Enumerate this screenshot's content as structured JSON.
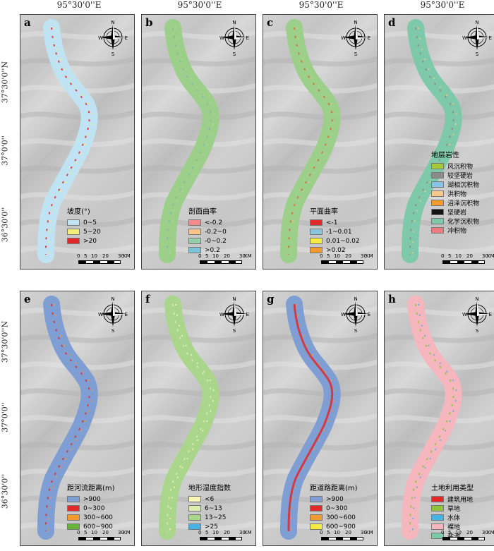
{
  "longitude_label": "95°30'0''E",
  "latitude_labels": [
    "37°30'0''N",
    "37°0'0''",
    "36°30'0''"
  ],
  "panels": [
    {
      "id": "a",
      "legend_title": "坡度(°)",
      "items": [
        {
          "label": "0~5",
          "color": "#bfe3f2"
        },
        {
          "label": "5~20",
          "color": "#f4ec77"
        },
        {
          "label": ">20",
          "color": "#e3282a"
        }
      ],
      "base": "#bfe3f2",
      "accent": "#e3282a",
      "accent2": "#f4ec77"
    },
    {
      "id": "b",
      "legend_title": "剖面曲率",
      "items": [
        {
          "label": "<-0.2",
          "color": "#f28b8b"
        },
        {
          "label": "-0.2~0",
          "color": "#f9c48a"
        },
        {
          "label": "-0~0.2",
          "color": "#94cfa8"
        },
        {
          "label": ">0.2",
          "color": "#7cc3d8"
        }
      ],
      "base": "#9ccf8a",
      "accent": "#7fb8a8",
      "accent2": "#b7d68f"
    },
    {
      "id": "c",
      "legend_title": "平面曲率",
      "items": [
        {
          "label": "<-1",
          "color": "#e3282a"
        },
        {
          "label": "-1~0.01",
          "color": "#88c6dc"
        },
        {
          "label": "0.01~0.02",
          "color": "#f4ec44"
        },
        {
          "label": ">0.02",
          "color": "#f29a2e"
        }
      ],
      "base": "#9ccf8a",
      "accent": "#d96a33",
      "accent2": "#b5d890"
    },
    {
      "id": "d",
      "legend_title": "地层岩性",
      "items": [
        {
          "label": "风沉积物",
          "color": "#a6c93a"
        },
        {
          "label": "较坚硬岩",
          "color": "#8c8a8a"
        },
        {
          "label": "湖相沉积物",
          "color": "#87c4e4"
        },
        {
          "label": "洪积物",
          "color": "#f6c98a"
        },
        {
          "label": "沼泽沉积物",
          "color": "#f29a2e"
        },
        {
          "label": "坚硬岩",
          "color": "#141414"
        },
        {
          "label": "化学沉积物",
          "color": "#7ec9a9"
        },
        {
          "label": "冲积物",
          "color": "#f07a82"
        }
      ],
      "base": "#7ec9a9",
      "accent": "#8c8a8a",
      "accent2": "#f6c98a"
    },
    {
      "id": "e",
      "legend_title": "距河流距离(m)",
      "items": [
        {
          "label": ">900",
          "color": "#7f9fd4"
        },
        {
          "label": "0~300",
          "color": "#e3282a"
        },
        {
          "label": "300~600",
          "color": "#f29a2e"
        },
        {
          "label": "600~900",
          "color": "#69b33b"
        }
      ],
      "base": "#7f9fd4",
      "accent": "#e3282a",
      "accent2": "#f29a2e"
    },
    {
      "id": "f",
      "legend_title": "地形湿度指数",
      "items": [
        {
          "label": "<6",
          "color": "#fbf5b8"
        },
        {
          "label": "6~13",
          "color": "#dcedb0"
        },
        {
          "label": "13~25",
          "color": "#a9d68a"
        },
        {
          "label": ">25",
          "color": "#46b3e6"
        }
      ],
      "base": "#a9d68a",
      "accent": "#dcedb0",
      "accent2": "#fbf5b8"
    },
    {
      "id": "g",
      "legend_title": "距道路距离(m)",
      "items": [
        {
          "label": ">900",
          "color": "#7f9fd4"
        },
        {
          "label": "0~300",
          "color": "#e3282a"
        },
        {
          "label": "300~600",
          "color": "#f29a2e"
        },
        {
          "label": "600~900",
          "color": "#f4ec44"
        }
      ],
      "base": "#7f9fd4",
      "accent": "#e3282a",
      "accent2": "#f29a2e"
    },
    {
      "id": "h",
      "legend_title": "土地利用类型",
      "items": [
        {
          "label": "建筑用地",
          "color": "#e3282a"
        },
        {
          "label": "草地",
          "color": "#8fc43a"
        },
        {
          "label": "水体",
          "color": "#46b3e6"
        },
        {
          "label": "裸地",
          "color": "#f5b6bd"
        },
        {
          "label": "盐池",
          "color": "#7ec9a9"
        }
      ],
      "base": "#f5b6bd",
      "accent": "#8fc43a",
      "accent2": "#46b3e6"
    }
  ],
  "compass_letters": {
    "n": "N",
    "s": "S",
    "e": "E",
    "w": "W"
  },
  "scale_labels": [
    "0",
    "5",
    "10",
    "20",
    "30"
  ],
  "scale_unit": "KM"
}
